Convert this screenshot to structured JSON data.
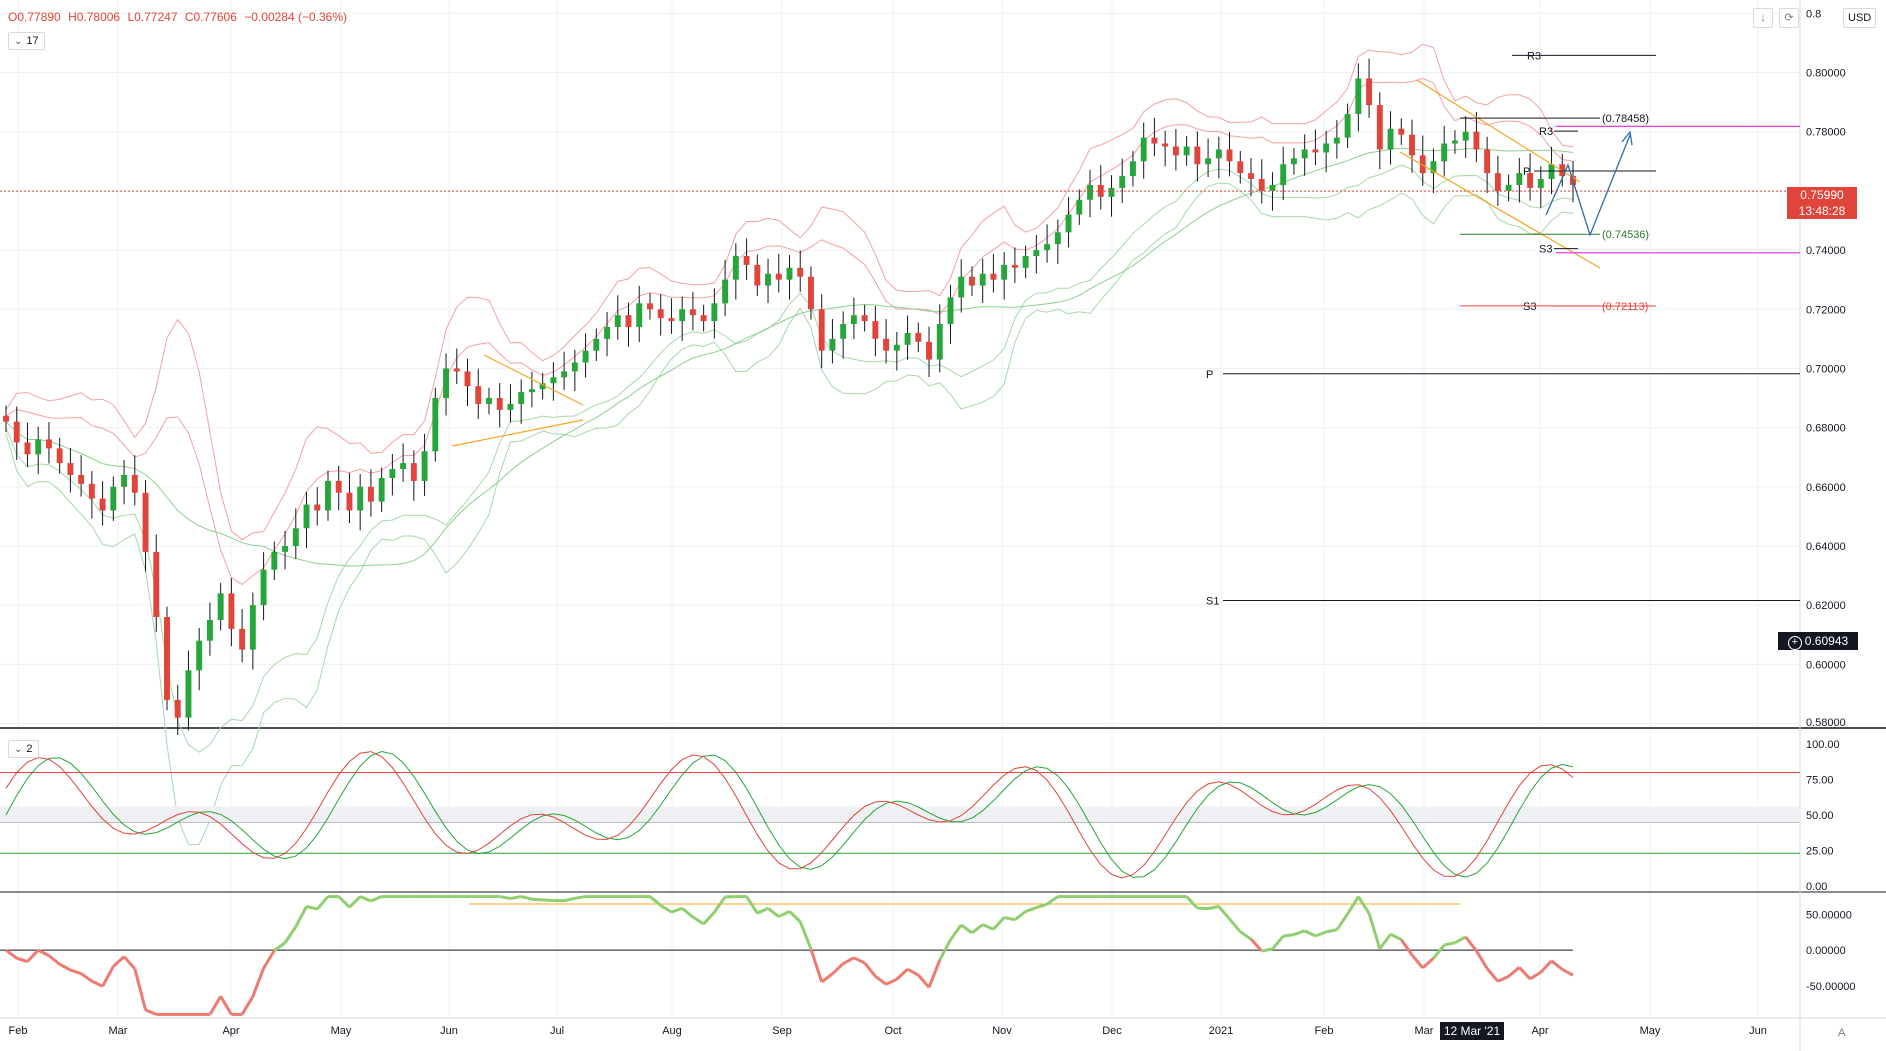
{
  "ohlc": {
    "open": "O0.77890",
    "high": "H0.78006",
    "low": "L0.77247",
    "close": "C0.77606",
    "change": "−0.00284 (−0.36%)"
  },
  "legends": {
    "main": "17",
    "oscillator": "2"
  },
  "toolbar": {
    "currency": "USD",
    "scroll_icon": "arrow-down-icon",
    "reset_icon": "refresh-icon"
  },
  "last_price": {
    "price": "0.75990",
    "countdown": "13:48:28"
  },
  "crosshair": {
    "price": "0.60943",
    "date": "12 Mar '21"
  },
  "time_scale_corner": "A",
  "colors": {
    "bull": "#26a63a",
    "bear": "#e0443a",
    "upper_band": "#f4a1a1",
    "lower_band": "#a8d8a8",
    "triangle": "#f5a623",
    "projection": "#2e6da4",
    "magenta": "#e040e0"
  },
  "chart_data": [
    {
      "type": "candlestick",
      "title": "",
      "x_labels": [
        "Feb",
        "Mar",
        "Apr",
        "May",
        "Jun",
        "Jul",
        "Aug",
        "Sep",
        "Oct",
        "Nov",
        "Dec",
        "2021",
        "Feb",
        "Mar",
        "Apr",
        "May",
        "Jun"
      ],
      "y_tick_labels": [
        "0.8",
        "0.80000",
        "0.78000",
        "0.76000",
        "0.74000",
        "0.72000",
        "0.70000",
        "0.68000",
        "0.66000",
        "0.64000",
        "0.62000",
        "0.60000",
        "0.58000"
      ],
      "y_ticks": [
        0.82,
        0.8,
        0.78,
        0.76,
        0.74,
        0.72,
        0.7,
        0.68,
        0.66,
        0.64,
        0.62,
        0.6,
        0.58
      ],
      "ylim": [
        0.5785,
        0.8245
      ],
      "closes": [
        0.682,
        0.675,
        0.671,
        0.676,
        0.673,
        0.668,
        0.664,
        0.661,
        0.656,
        0.652,
        0.66,
        0.664,
        0.658,
        0.638,
        0.616,
        0.588,
        0.582,
        0.598,
        0.608,
        0.615,
        0.624,
        0.612,
        0.605,
        0.62,
        0.632,
        0.638,
        0.64,
        0.646,
        0.654,
        0.652,
        0.662,
        0.658,
        0.652,
        0.66,
        0.655,
        0.663,
        0.666,
        0.668,
        0.662,
        0.672,
        0.69,
        0.7,
        0.699,
        0.694,
        0.688,
        0.69,
        0.686,
        0.688,
        0.692,
        0.693,
        0.695,
        0.697,
        0.699,
        0.702,
        0.706,
        0.71,
        0.714,
        0.718,
        0.714,
        0.722,
        0.72,
        0.717,
        0.716,
        0.72,
        0.718,
        0.716,
        0.722,
        0.73,
        0.738,
        0.735,
        0.728,
        0.732,
        0.73,
        0.734,
        0.731,
        0.72,
        0.706,
        0.71,
        0.715,
        0.718,
        0.716,
        0.71,
        0.706,
        0.708,
        0.712,
        0.709,
        0.703,
        0.715,
        0.724,
        0.731,
        0.728,
        0.732,
        0.73,
        0.735,
        0.734,
        0.738,
        0.74,
        0.742,
        0.746,
        0.752,
        0.757,
        0.762,
        0.758,
        0.761,
        0.765,
        0.77,
        0.778,
        0.776,
        0.775,
        0.772,
        0.775,
        0.769,
        0.771,
        0.774,
        0.77,
        0.766,
        0.764,
        0.76,
        0.762,
        0.769,
        0.771,
        0.774,
        0.773,
        0.776,
        0.778,
        0.786,
        0.798,
        0.789,
        0.774,
        0.781,
        0.779,
        0.772,
        0.766,
        0.77,
        0.776,
        0.777,
        0.78,
        0.774,
        0.766,
        0.76,
        0.762,
        0.766,
        0.761,
        0.764,
        0.769,
        0.765,
        0.762
      ]
    },
    {
      "type": "line",
      "title": "",
      "y_tick_labels": [
        "100.00",
        "75.00",
        "50.00",
        "25.00",
        "0.00"
      ],
      "y_ticks": [
        100,
        75,
        50,
        25,
        0
      ],
      "ylim": [
        -3,
        103
      ],
      "levels": [
        80,
        45,
        23
      ]
    },
    {
      "type": "line",
      "title": "",
      "y_tick_labels": [
        "50.00000",
        "0.00000",
        "-50.00000"
      ],
      "y_ticks": [
        50,
        0,
        -50
      ],
      "ylim": [
        -95,
        80
      ],
      "levels": [
        0
      ]
    }
  ],
  "annotations": {
    "pivots": [
      {
        "label": "R3",
        "value": 0.8058
      },
      {
        "label": "R3",
        "value": 0.7802
      },
      {
        "label": "P",
        "value": 0.7667
      },
      {
        "label": "S3",
        "value": 0.7405
      },
      {
        "label": "S3",
        "value": 0.7211
      },
      {
        "label": "P",
        "value": 0.6982
      },
      {
        "label": "S1",
        "value": 0.6216
      }
    ],
    "targets": [
      {
        "label": "(0.78458)",
        "value": 0.78458
      },
      {
        "label": "(0.74536)",
        "value": 0.74536
      },
      {
        "label": "(0.72113)",
        "value": 0.72113
      }
    ]
  }
}
